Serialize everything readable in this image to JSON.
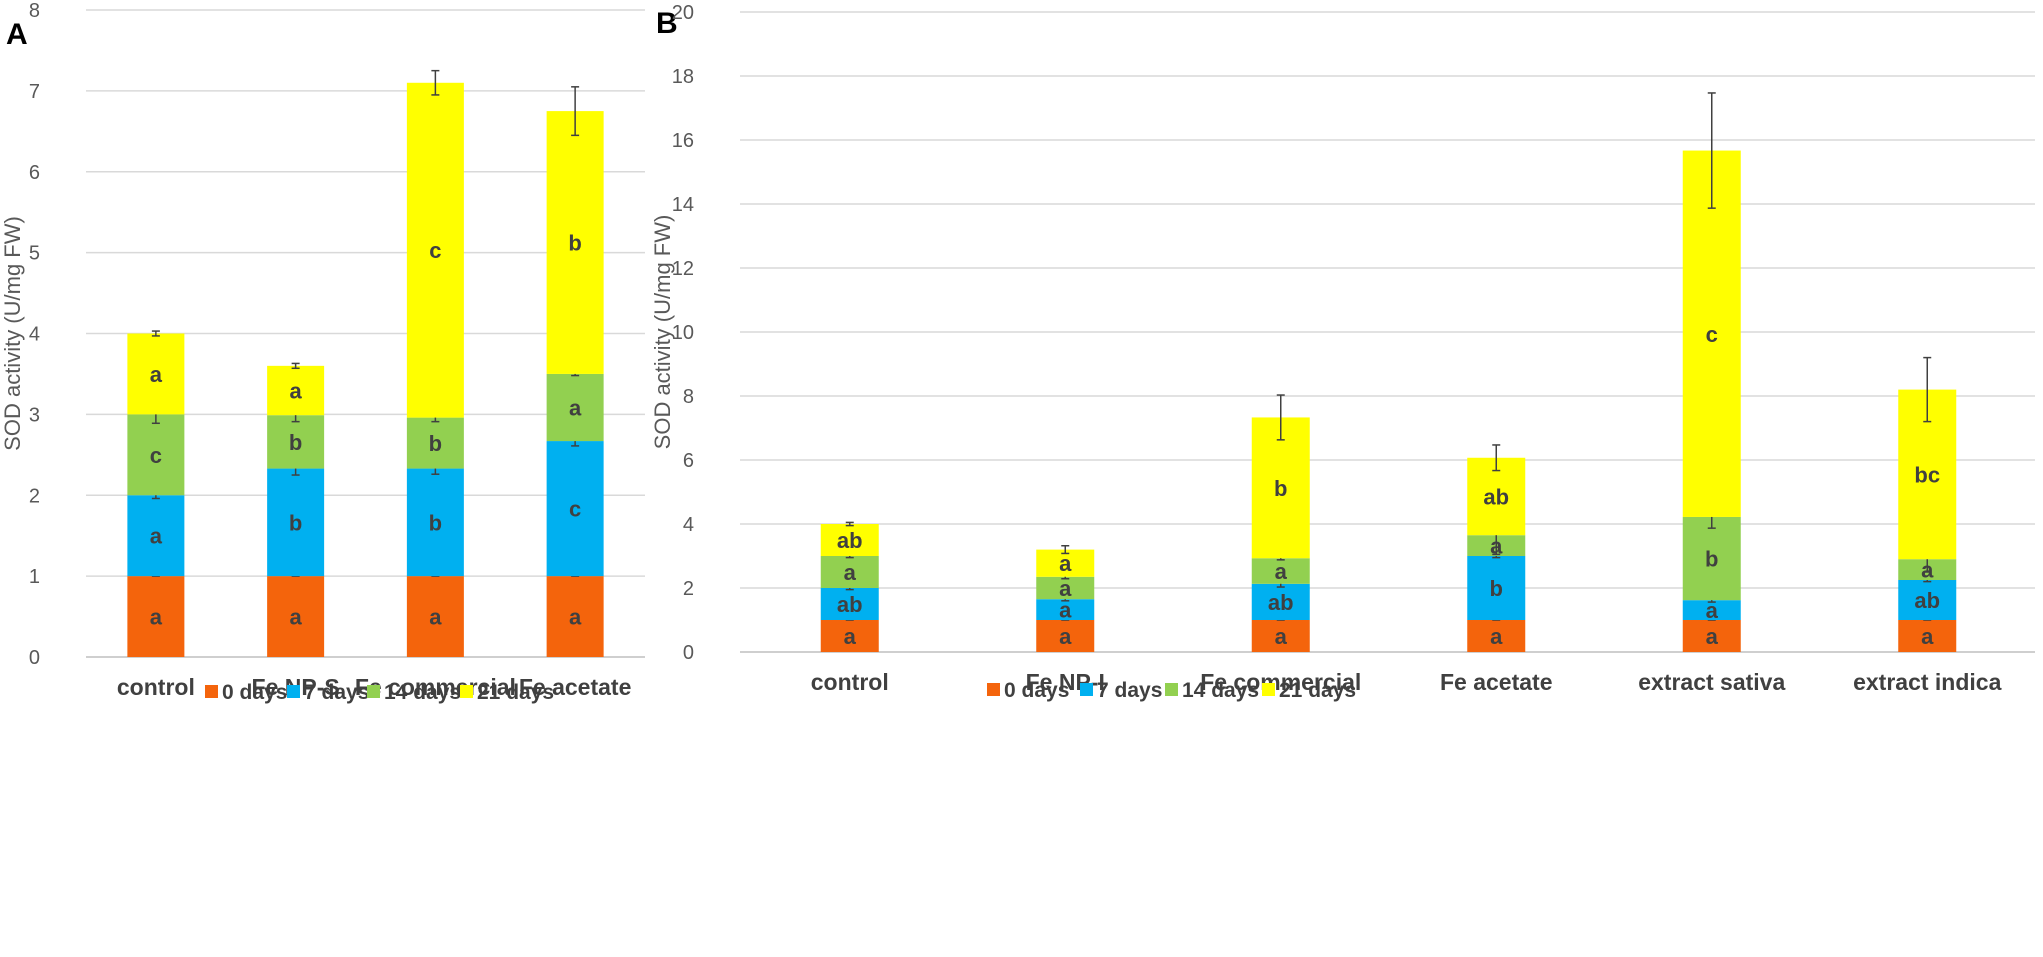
{
  "chart_data": [
    {
      "panel": "A",
      "type": "bar",
      "stacked": true,
      "ylabel": "SOD activity (U/mg FW)",
      "ylim": [
        0,
        8
      ],
      "yticks": [
        0,
        1,
        2,
        3,
        4,
        5,
        6,
        7,
        8
      ],
      "grid": true,
      "legend_position": "bottom",
      "categories": [
        "control",
        "Fe NP-S",
        "Fe commercial",
        "Fe acetate"
      ],
      "series": [
        {
          "name": "0 days",
          "color": "#f4640c",
          "values": [
            1.0,
            1.0,
            1.0,
            1.0
          ],
          "errors": [
            0.0,
            0.0,
            0.0,
            0.0
          ],
          "labels": [
            "a",
            "a",
            "a",
            "a"
          ]
        },
        {
          "name": "7 days",
          "color": "#00b0f0",
          "values": [
            1.0,
            1.33,
            1.33,
            1.67
          ],
          "errors": [
            0.04,
            0.08,
            0.07,
            0.06
          ],
          "labels": [
            "a",
            "b",
            "b",
            "c"
          ]
        },
        {
          "name": "14 days",
          "color": "#92d050",
          "values": [
            1.0,
            0.66,
            0.63,
            0.83
          ],
          "errors": [
            0.11,
            0.08,
            0.05,
            0.02
          ],
          "labels": [
            "c",
            "b",
            "b",
            "a"
          ]
        },
        {
          "name": "21 days",
          "color": "#ffff00",
          "values": [
            1.0,
            0.61,
            4.14,
            3.25
          ],
          "errors": [
            0.03,
            0.03,
            0.15,
            0.3
          ],
          "labels": [
            "a",
            "a",
            "c",
            "b"
          ]
        }
      ]
    },
    {
      "panel": "B",
      "type": "bar",
      "stacked": true,
      "ylabel": "SOD activity (U/mg FW)",
      "ylim": [
        0,
        20
      ],
      "yticks": [
        0,
        2,
        4,
        6,
        8,
        10,
        12,
        14,
        16,
        18,
        20
      ],
      "grid": true,
      "legend_position": "bottom",
      "categories": [
        "control",
        "Fe NP-I",
        "Fe commercial",
        "Fe acetate",
        "extract sativa",
        "extract indica"
      ],
      "series": [
        {
          "name": "0 days",
          "color": "#f4640c",
          "values": [
            1.0,
            1.0,
            1.0,
            1.0,
            1.0,
            1.0
          ],
          "errors": [
            0.0,
            0.0,
            0.0,
            0.0,
            0.0,
            0.0
          ],
          "labels": [
            "a",
            "a",
            "a",
            "a",
            "a",
            "a"
          ]
        },
        {
          "name": "7 days",
          "color": "#00b0f0",
          "values": [
            1.0,
            0.65,
            1.13,
            2.0,
            0.62,
            1.25
          ],
          "errors": [
            0.05,
            0.05,
            0.1,
            0.05,
            0.06,
            0.05
          ],
          "labels": [
            "ab",
            "a",
            "ab",
            "b",
            "a",
            "ab"
          ]
        },
        {
          "name": "14 days",
          "color": "#92d050",
          "values": [
            1.0,
            0.7,
            0.8,
            0.65,
            2.6,
            0.65
          ],
          "errors": [
            0.05,
            0.06,
            0.05,
            0.6,
            0.35,
            0.4
          ],
          "labels": [
            "a",
            "a",
            "a",
            "a",
            "b",
            "a"
          ]
        },
        {
          "name": "21 days",
          "color": "#ffff00",
          "values": [
            1.0,
            0.85,
            4.4,
            2.42,
            11.45,
            5.3
          ],
          "errors": [
            0.05,
            0.12,
            0.7,
            0.4,
            1.8,
            1.0
          ],
          "labels": [
            "ab",
            "a",
            "b",
            "ab",
            "c",
            "bc"
          ]
        }
      ]
    }
  ]
}
